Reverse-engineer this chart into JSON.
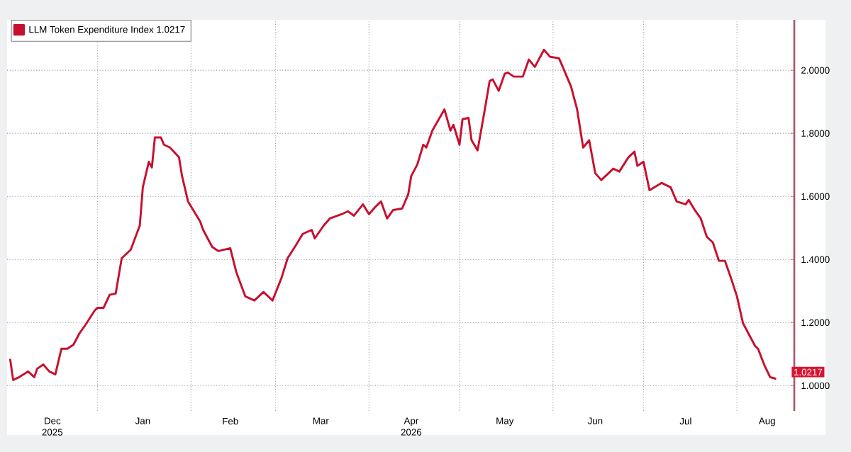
{
  "chart_data": {
    "type": "line",
    "x": [
      "2025-12-03",
      "2025-12-04",
      "2025-12-06",
      "2025-12-09",
      "2025-12-11",
      "2025-12-12",
      "2025-12-14",
      "2025-12-16",
      "2025-12-18",
      "2025-12-20",
      "2025-12-22",
      "2025-12-24",
      "2025-12-26",
      "2025-12-28",
      "2025-12-31",
      "2026-01-01",
      "2026-01-03",
      "2026-01-05",
      "2026-01-07",
      "2026-01-09",
      "2026-01-12",
      "2026-01-15",
      "2026-01-16",
      "2026-01-18",
      "2026-01-19",
      "2026-01-20",
      "2026-01-22",
      "2026-01-23",
      "2026-01-25",
      "2026-01-28",
      "2026-01-29",
      "2026-01-31",
      "2026-02-04",
      "2026-02-05",
      "2026-02-08",
      "2026-02-10",
      "2026-02-14",
      "2026-02-16",
      "2026-02-19",
      "2026-02-22",
      "2026-02-25",
      "2026-02-28",
      "2026-03-03",
      "2026-03-05",
      "2026-03-08",
      "2026-03-10",
      "2026-03-13",
      "2026-03-14",
      "2026-03-17",
      "2026-03-19",
      "2026-03-23",
      "2026-03-25",
      "2026-03-27",
      "2026-03-30",
      "2026-04-01",
      "2026-04-03",
      "2026-04-05",
      "2026-04-07",
      "2026-04-09",
      "2026-04-12",
      "2026-04-14",
      "2026-04-15",
      "2026-04-17",
      "2026-04-19",
      "2026-04-20",
      "2026-04-22",
      "2026-04-26",
      "2026-04-28",
      "2026-04-29",
      "2026-05-01",
      "2026-05-02",
      "2026-05-04",
      "2026-05-05",
      "2026-05-07",
      "2026-05-09",
      "2026-05-11",
      "2026-05-12",
      "2026-05-14",
      "2026-05-16",
      "2026-05-17",
      "2026-05-19",
      "2026-05-22",
      "2026-05-24",
      "2026-05-26",
      "2026-05-29",
      "2026-05-31",
      "2026-06-03",
      "2026-06-04",
      "2026-06-07",
      "2026-06-09",
      "2026-06-11",
      "2026-06-13",
      "2026-06-15",
      "2026-06-17",
      "2026-06-21",
      "2026-06-23",
      "2026-06-26",
      "2026-06-28",
      "2026-06-29",
      "2026-07-01",
      "2026-07-03",
      "2026-07-07",
      "2026-07-10",
      "2026-07-12",
      "2026-07-15",
      "2026-07-16",
      "2026-07-18",
      "2026-07-20",
      "2026-07-22",
      "2026-07-24",
      "2026-07-26",
      "2026-07-28",
      "2026-07-30",
      "2026-08-01",
      "2026-08-03",
      "2026-08-05",
      "2026-08-07",
      "2026-08-08",
      "2026-08-10",
      "2026-08-12",
      "2026-08-14"
    ],
    "series": [
      {
        "name": "LLM Token Expenditure Index 1.0217",
        "color": "#c8102e",
        "values": [
          1.085,
          1.018,
          1.027,
          1.045,
          1.027,
          1.054,
          1.067,
          1.045,
          1.036,
          1.117,
          1.117,
          1.13,
          1.166,
          1.193,
          1.238,
          1.247,
          1.247,
          1.288,
          1.292,
          1.404,
          1.431,
          1.508,
          1.629,
          1.71,
          1.692,
          1.787,
          1.787,
          1.764,
          1.755,
          1.724,
          1.665,
          1.584,
          1.521,
          1.494,
          1.44,
          1.427,
          1.436,
          1.36,
          1.283,
          1.27,
          1.297,
          1.27,
          1.342,
          1.404,
          1.449,
          1.481,
          1.494,
          1.467,
          1.508,
          1.53,
          1.544,
          1.553,
          1.539,
          1.575,
          1.544,
          1.566,
          1.584,
          1.53,
          1.557,
          1.562,
          1.607,
          1.665,
          1.701,
          1.764,
          1.755,
          1.809,
          1.876,
          1.809,
          1.827,
          1.764,
          1.845,
          1.849,
          1.778,
          1.746,
          1.854,
          1.966,
          1.971,
          1.935,
          1.989,
          1.993,
          1.98,
          1.98,
          2.034,
          2.011,
          2.065,
          2.043,
          2.038,
          2.016,
          1.948,
          1.876,
          1.755,
          1.778,
          1.674,
          1.652,
          1.688,
          1.679,
          1.724,
          1.742,
          1.697,
          1.71,
          1.62,
          1.643,
          1.629,
          1.584,
          1.575,
          1.589,
          1.557,
          1.53,
          1.472,
          1.454,
          1.396,
          1.396,
          1.342,
          1.283,
          1.198,
          1.162,
          1.126,
          1.117,
          1.067,
          1.027,
          1.0217
        ]
      }
    ],
    "xlim": [
      "2025-12-02",
      "2026-08-20"
    ],
    "xticks": [
      {
        "value": "2026-01-01",
        "label": null
      },
      {
        "value": "2026-02-01",
        "label": null
      },
      {
        "value": "2026-03-01",
        "label": null
      },
      {
        "value": "2026-04-01",
        "label": null
      },
      {
        "value": "2026-05-01",
        "label": null
      },
      {
        "value": "2026-06-01",
        "label": null
      },
      {
        "value": "2026-07-01",
        "label": null
      },
      {
        "value": "2026-08-01",
        "label": null
      },
      {
        "value": "2025-12-17",
        "label": "Dec 2025"
      },
      {
        "value": "2026-01-16",
        "label": "Jan"
      },
      {
        "value": "2026-02-14",
        "label": "Feb"
      },
      {
        "value": "2026-03-16",
        "label": "Mar"
      },
      {
        "value": "2026-04-15",
        "label": "Apr 2026"
      },
      {
        "value": "2026-05-16",
        "label": "May"
      },
      {
        "value": "2026-06-15",
        "label": "Jun"
      },
      {
        "value": "2026-07-15",
        "label": "Jul"
      },
      {
        "value": "2026-08-11",
        "label": "Aug"
      }
    ],
    "ylim": [
      0.92,
      2.16
    ],
    "yticks": [
      {
        "value": 1,
        "label": "1.0000"
      },
      {
        "value": 1.2,
        "label": "1.2000"
      },
      {
        "value": 1.4,
        "label": "1.4000"
      },
      {
        "value": 1.6,
        "label": "1.6000"
      },
      {
        "value": 1.8,
        "label": "1.8000"
      },
      {
        "value": 2,
        "label": "2.0000"
      }
    ],
    "annotations": [
      {
        "text": "1.0217",
        "x": "2026-08-14",
        "y": 1.0217
      }
    ],
    "grid": true,
    "legend": "top left",
    "marker": "none",
    "line_style": "solid"
  }
}
